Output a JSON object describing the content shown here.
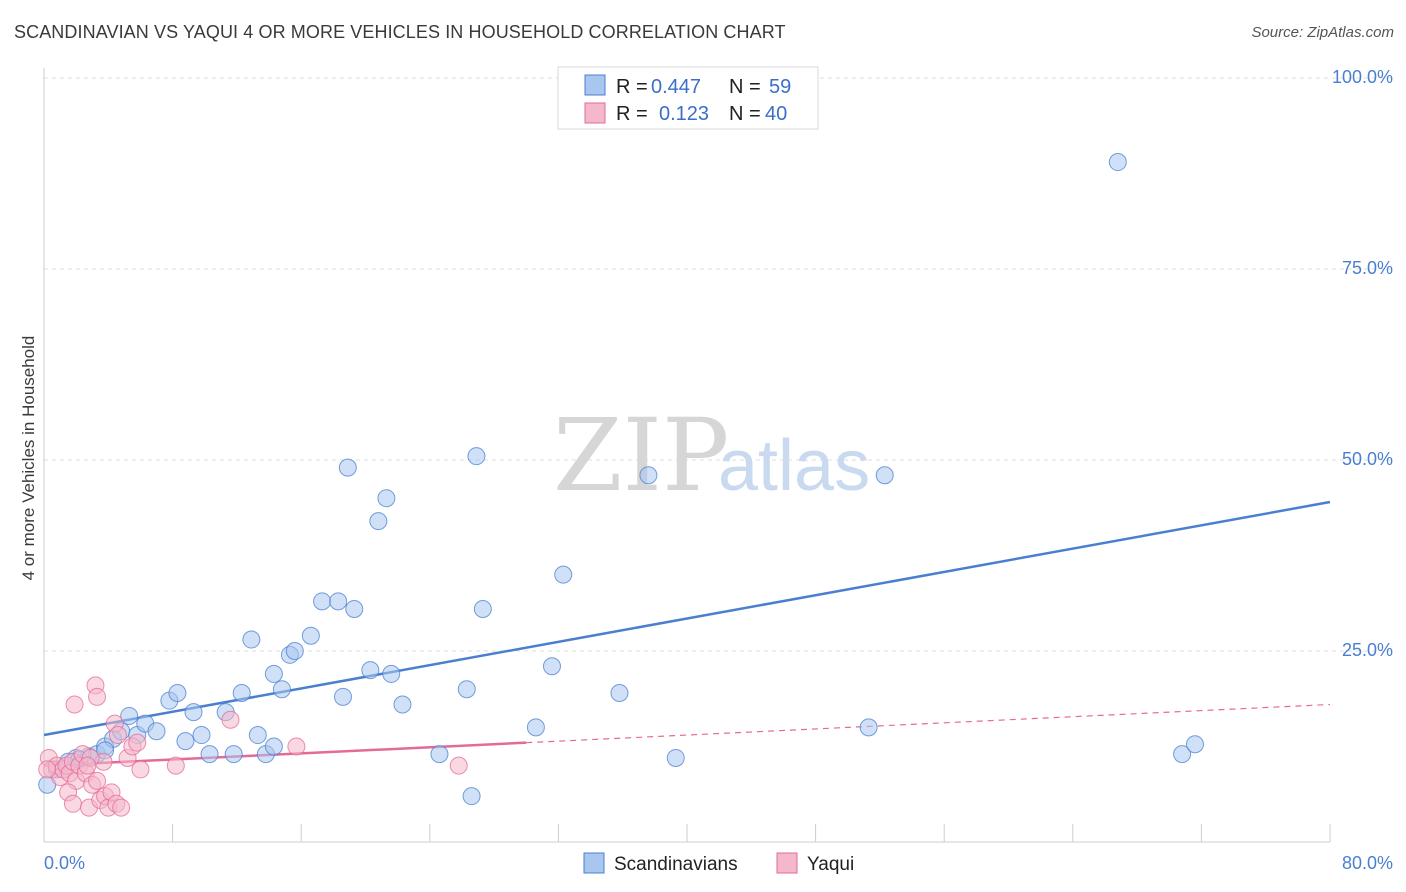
{
  "title": "SCANDINAVIAN VS YAQUI 4 OR MORE VEHICLES IN HOUSEHOLD CORRELATION CHART",
  "source": "Source: ZipAtlas.com",
  "watermark": {
    "zip": "ZIP",
    "atlas": "atlas"
  },
  "colors": {
    "blue": "#4a7fd0",
    "blue_fill": "#a9c6ef",
    "pink": "#e46a98",
    "pink_fill": "#f4b8cb",
    "grid": "#dddddd"
  },
  "chart_data": {
    "type": "scatter",
    "title": "SCANDINAVIAN VS YAQUI 4 OR MORE VEHICLES IN HOUSEHOLD CORRELATION CHART",
    "xlabel": "",
    "ylabel": "4 or more Vehicles in Household",
    "xlim": [
      0,
      80
    ],
    "ylim": [
      0,
      100
    ],
    "x_tick_labels": [
      "0.0%",
      "80.0%"
    ],
    "y_ticks": [
      25,
      50,
      75,
      100
    ],
    "y_tick_labels": [
      "25.0%",
      "50.0%",
      "75.0%",
      "100.0%"
    ],
    "legend": [
      {
        "r_label": "R =",
        "r": "0.447",
        "n_label": "N =",
        "n": "59"
      },
      {
        "r_label": "R =",
        "r": "0.123",
        "n_label": "N =",
        "n": "40"
      }
    ],
    "series": [
      {
        "name": "Scandinavians",
        "color": "#4a7fd0",
        "trend": {
          "x": [
            0,
            80
          ],
          "y": [
            14.0,
            44.5
          ],
          "dashed_from": null
        },
        "points": [
          [
            0.2,
            7.5
          ],
          [
            0.8,
            9.5
          ],
          [
            1.5,
            10.5
          ],
          [
            2.0,
            11
          ],
          [
            2.8,
            11.2
          ],
          [
            3.3,
            11.5
          ],
          [
            3.8,
            12.5
          ],
          [
            4.3,
            13.5
          ],
          [
            4.8,
            14.5
          ],
          [
            5.3,
            16.5
          ],
          [
            5.8,
            14
          ],
          [
            6.3,
            15.5
          ],
          [
            7.0,
            14.5
          ],
          [
            7.8,
            18.5
          ],
          [
            8.3,
            19.5
          ],
          [
            8.8,
            13.2
          ],
          [
            9.3,
            17.0
          ],
          [
            9.8,
            14
          ],
          [
            10.3,
            11.5
          ],
          [
            11.3,
            17
          ],
          [
            11.8,
            11.5
          ],
          [
            12.3,
            19.5
          ],
          [
            13.3,
            14
          ],
          [
            13.8,
            11.5
          ],
          [
            14.3,
            12.5
          ],
          [
            12.9,
            26.5
          ],
          [
            14.3,
            22
          ],
          [
            14.8,
            20
          ],
          [
            15.3,
            24.5
          ],
          [
            15.6,
            25
          ],
          [
            16.6,
            27
          ],
          [
            17.3,
            31.5
          ],
          [
            18.3,
            31.5
          ],
          [
            18.6,
            19
          ],
          [
            18.9,
            49
          ],
          [
            19.3,
            30.5
          ],
          [
            20.8,
            42
          ],
          [
            21.3,
            45
          ],
          [
            20.3,
            22.5
          ],
          [
            21.6,
            22
          ],
          [
            22.3,
            18
          ],
          [
            24.6,
            11.5
          ],
          [
            26.3,
            20
          ],
          [
            26.6,
            6
          ],
          [
            26.9,
            50.5
          ],
          [
            27.3,
            30.5
          ],
          [
            30.6,
            15
          ],
          [
            31.6,
            23
          ],
          [
            32.3,
            35
          ],
          [
            35.8,
            19.5
          ],
          [
            37.6,
            48
          ],
          [
            39.3,
            11
          ],
          [
            51.3,
            15
          ],
          [
            52.3,
            48
          ],
          [
            66.8,
            89
          ],
          [
            70.8,
            11.5
          ],
          [
            71.6,
            12.8
          ],
          [
            3.8,
            12
          ],
          [
            2.2,
            10.8
          ]
        ]
      },
      {
        "name": "Yaqui",
        "color": "#e46a98",
        "trend": {
          "x": [
            0,
            80
          ],
          "y": [
            10.0,
            18.0
          ],
          "dashed_from": 30
        },
        "points": [
          [
            0.3,
            11
          ],
          [
            0.5,
            9.5
          ],
          [
            0.8,
            10
          ],
          [
            1.0,
            8.5
          ],
          [
            1.2,
            9.5
          ],
          [
            1.4,
            10
          ],
          [
            1.6,
            9
          ],
          [
            1.8,
            10.5
          ],
          [
            2.0,
            8
          ],
          [
            2.2,
            10
          ],
          [
            2.4,
            11.5
          ],
          [
            2.6,
            9
          ],
          [
            1.5,
            6.5
          ],
          [
            1.8,
            5
          ],
          [
            2.8,
            4.5
          ],
          [
            3.0,
            7.5
          ],
          [
            3.3,
            8
          ],
          [
            3.5,
            5.5
          ],
          [
            3.8,
            6
          ],
          [
            4.0,
            4.5
          ],
          [
            4.2,
            6.5
          ],
          [
            4.5,
            5
          ],
          [
            4.8,
            4.5
          ],
          [
            5.2,
            11
          ],
          [
            5.5,
            12.5
          ],
          [
            5.8,
            13
          ],
          [
            4.4,
            15.5
          ],
          [
            4.6,
            14
          ],
          [
            3.2,
            20.5
          ],
          [
            3.3,
            19
          ],
          [
            1.9,
            18
          ],
          [
            3.7,
            10.5
          ],
          [
            2.9,
            11
          ],
          [
            2.7,
            10
          ],
          [
            6.0,
            9.5
          ],
          [
            8.2,
            10
          ],
          [
            11.6,
            16
          ],
          [
            15.7,
            12.5
          ],
          [
            25.8,
            10
          ],
          [
            0.2,
            9.5
          ]
        ]
      }
    ]
  }
}
